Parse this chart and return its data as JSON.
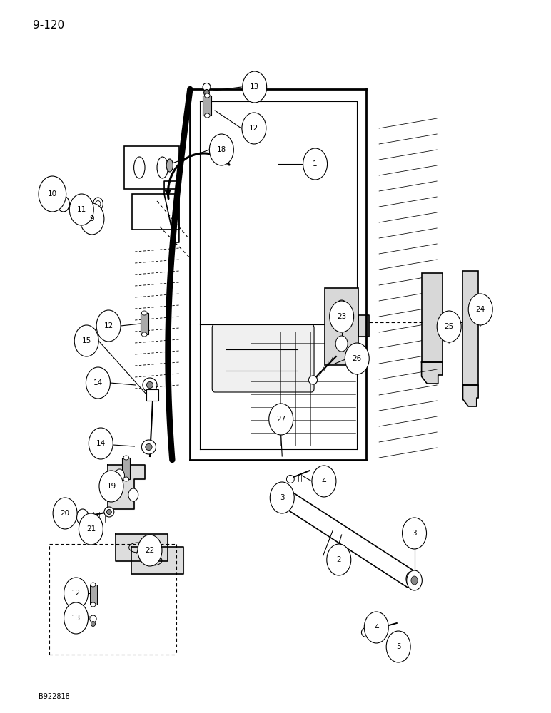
{
  "title": "9-120",
  "footer": "B922818",
  "bg_color": "#ffffff",
  "fig_width": 7.72,
  "fig_height": 10.0
}
